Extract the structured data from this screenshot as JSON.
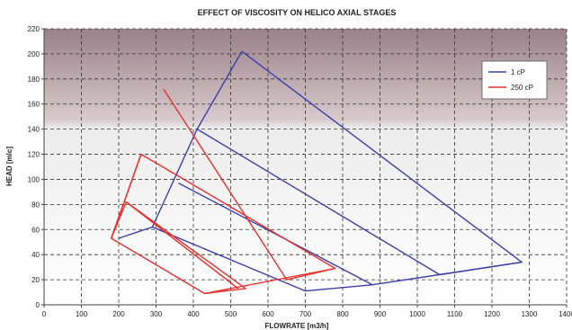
{
  "chart_data": {
    "type": "line",
    "title": "EFFECT OF VISCOSITY ON HELICO AXIAL STAGES",
    "xlabel": "FLOWRATE [m3/h]",
    "ylabel": "HEAD [mlc]",
    "xlim": [
      0,
      1400
    ],
    "ylim": [
      0,
      220
    ],
    "xticks": [
      0,
      100,
      200,
      300,
      400,
      500,
      600,
      700,
      800,
      900,
      1000,
      1100,
      1200,
      1300,
      1400
    ],
    "yticks": [
      0,
      20,
      40,
      60,
      80,
      100,
      120,
      140,
      160,
      180,
      200,
      220
    ],
    "grid": true,
    "legend_position": "top-right",
    "series": [
      {
        "name": "1 cP",
        "color": "#3b3fa8",
        "lines": [
          [
            [
              530,
              202
            ],
            [
              1280,
              34
            ],
            [
              1060,
              24
            ],
            [
              410,
              140
            ],
            [
              290,
              62
            ],
            [
              200,
              53
            ]
          ],
          [
            [
              360,
              97
            ],
            [
              880,
              16
            ],
            [
              700,
              11
            ],
            [
              290,
              62
            ]
          ],
          [
            [
              1280,
              34
            ],
            [
              880,
              16
            ]
          ],
          [
            [
              410,
              140
            ],
            [
              530,
              202
            ]
          ]
        ]
      },
      {
        "name": "250 cP",
        "color": "#e8302c",
        "lines": [
          [
            [
              320,
              172
            ],
            [
              650,
              20
            ],
            [
              780,
              29
            ],
            [
              260,
              120
            ],
            [
              180,
              53
            ],
            [
              220,
              82
            ],
            [
              520,
              13
            ]
          ],
          [
            [
              260,
              120
            ],
            [
              180,
              53
            ]
          ],
          [
            [
              220,
              82
            ],
            [
              540,
              13
            ],
            [
              430,
              9
            ],
            [
              180,
              53
            ]
          ],
          [
            [
              430,
              9
            ],
            [
              780,
              29
            ]
          ]
        ]
      }
    ]
  }
}
